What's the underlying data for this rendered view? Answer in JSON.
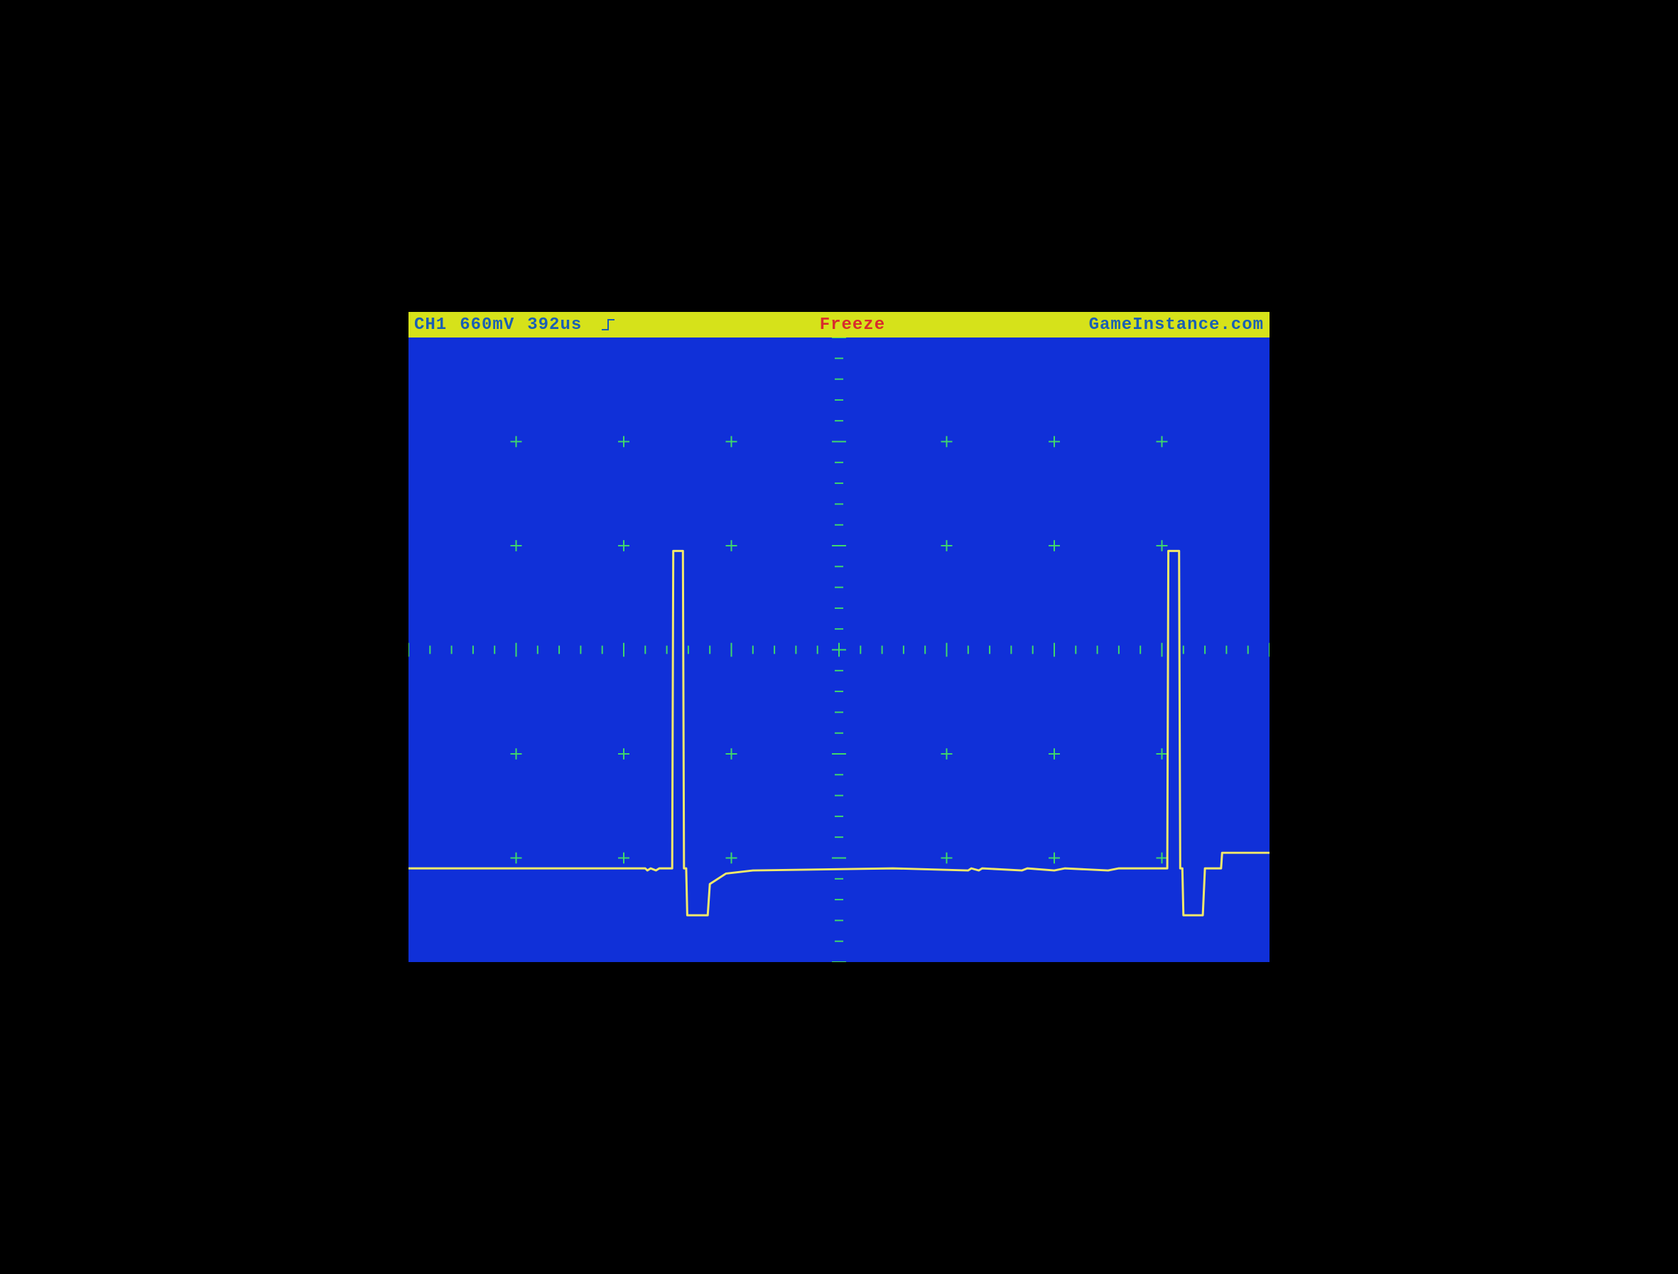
{
  "header": {
    "bg_color": "#d6e21a",
    "channel": "CH1",
    "channel_color": "#1a5fb4",
    "volts_per_div": "660mV",
    "volts_color": "#1a5fb4",
    "time_per_div": "392us",
    "time_color": "#1a5fb4",
    "trigger_edge": "rising",
    "trigger_color": "#1a5fb4",
    "mode": "Freeze",
    "mode_color": "#d92c2c",
    "brand": "GameInstance.com",
    "brand_color": "#1a5fb4"
  },
  "scope": {
    "type": "oscilloscope-trace",
    "background_color": "#1030d8",
    "grid_major_tick_color": "#3fd86b",
    "axis_tick_color": "#3fd86b",
    "trace_color": "#f2e96a",
    "x_divisions": 8,
    "y_divisions": 6,
    "x_range": [
      0,
      8
    ],
    "y_range": [
      -3,
      3
    ],
    "minor_ticks_per_div": 5,
    "baseline_y": -2.1,
    "waveform_points": [
      [
        0.0,
        -2.1
      ],
      [
        2.2,
        -2.1
      ],
      [
        2.22,
        -2.12
      ],
      [
        2.25,
        -2.1
      ],
      [
        2.3,
        -2.12
      ],
      [
        2.33,
        -2.1
      ],
      [
        2.45,
        -2.1
      ],
      [
        2.46,
        0.95
      ],
      [
        2.55,
        0.95
      ],
      [
        2.56,
        -2.1
      ],
      [
        2.58,
        -2.1
      ],
      [
        2.59,
        -2.55
      ],
      [
        2.78,
        -2.55
      ],
      [
        2.8,
        -2.25
      ],
      [
        2.95,
        -2.15
      ],
      [
        3.2,
        -2.12
      ],
      [
        4.5,
        -2.1
      ],
      [
        5.2,
        -2.12
      ],
      [
        5.23,
        -2.1
      ],
      [
        5.3,
        -2.12
      ],
      [
        5.33,
        -2.1
      ],
      [
        5.7,
        -2.12
      ],
      [
        5.75,
        -2.1
      ],
      [
        6.0,
        -2.12
      ],
      [
        6.1,
        -2.1
      ],
      [
        6.5,
        -2.12
      ],
      [
        6.6,
        -2.1
      ],
      [
        7.05,
        -2.1
      ],
      [
        7.06,
        0.95
      ],
      [
        7.16,
        0.95
      ],
      [
        7.17,
        -2.1
      ],
      [
        7.19,
        -2.1
      ],
      [
        7.2,
        -2.55
      ],
      [
        7.38,
        -2.55
      ],
      [
        7.4,
        -2.1
      ],
      [
        7.55,
        -2.1
      ],
      [
        7.56,
        -1.95
      ],
      [
        8.0,
        -1.95
      ]
    ]
  }
}
